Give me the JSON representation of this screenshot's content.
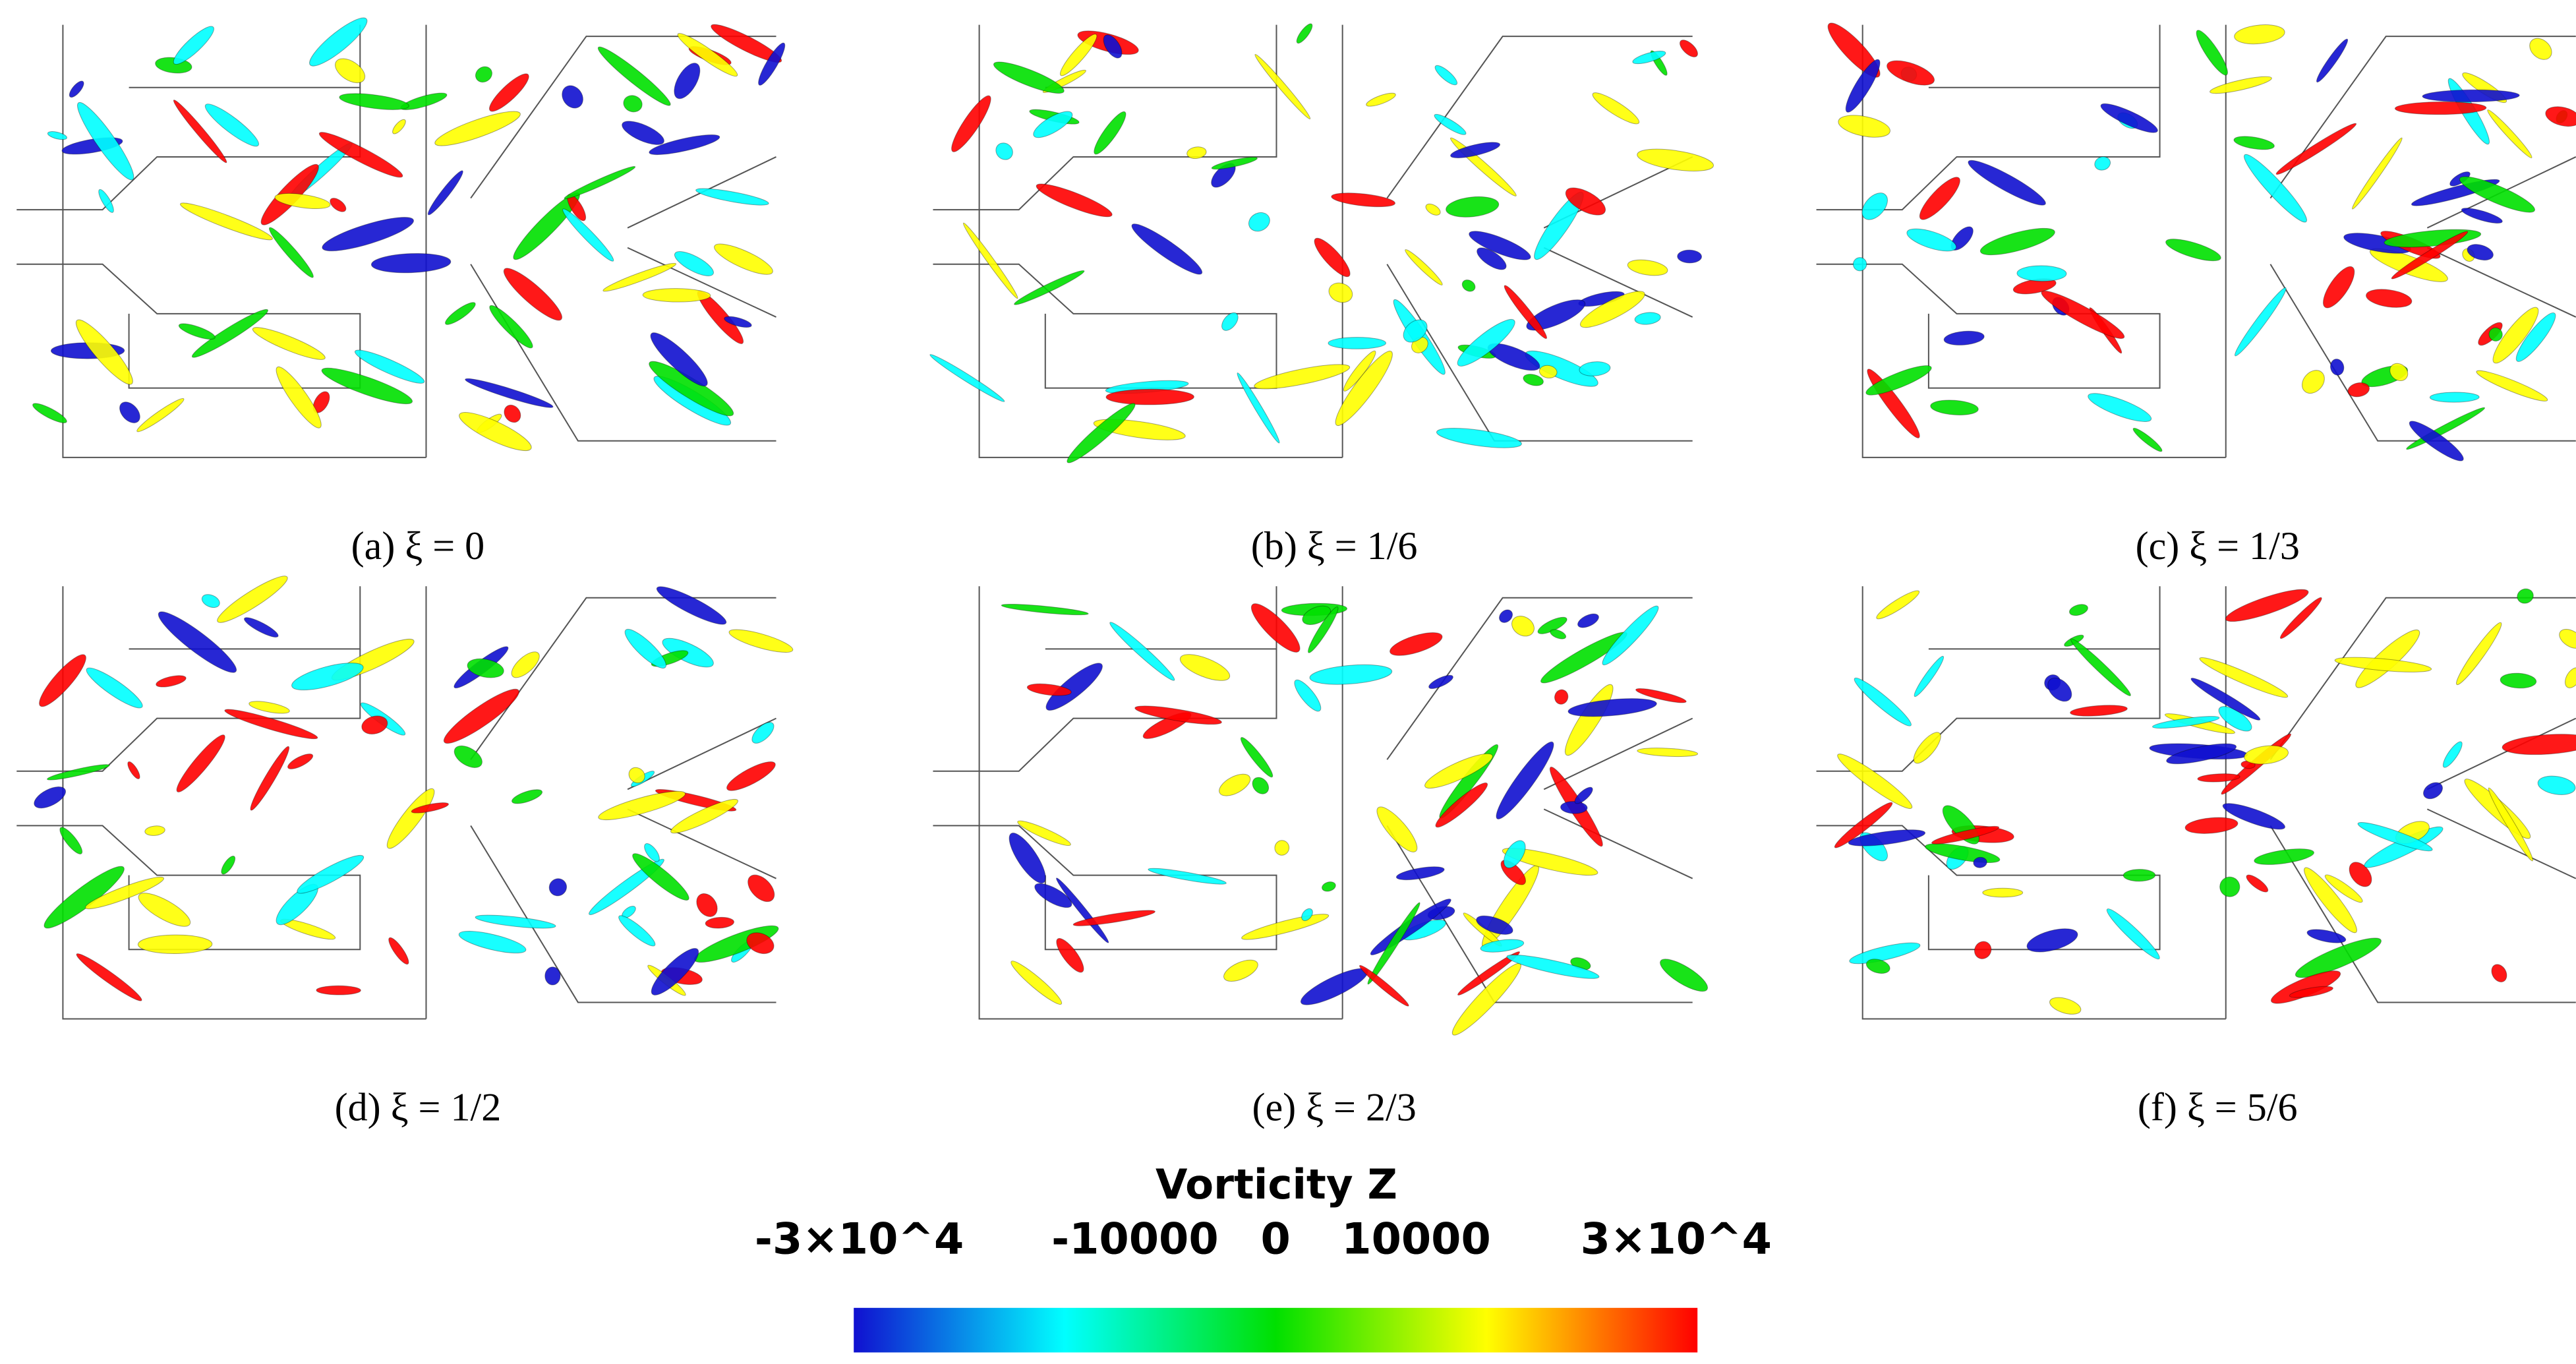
{
  "panels": [
    {
      "caption": "(a) ξ = 0"
    },
    {
      "caption": "(b) ξ = 1/6"
    },
    {
      "caption": "(c) ξ = 1/3"
    },
    {
      "caption": "(d) ξ = 1/2"
    },
    {
      "caption": "(e) ξ = 2/3"
    },
    {
      "caption": "(f) ξ = 5/6"
    }
  ],
  "colorbar": {
    "title": "Vorticity Z",
    "range": [
      -30000,
      30000
    ],
    "ticks": [
      {
        "value": -30000,
        "label": "-3×10^4"
      },
      -10000,
      0,
      10000,
      {
        "value": 30000,
        "label": "3×10^4"
      }
    ],
    "colors": [
      "#1010d0",
      "#00ffff",
      "#00e000",
      "#ffff00",
      "#ff0000"
    ]
  }
}
